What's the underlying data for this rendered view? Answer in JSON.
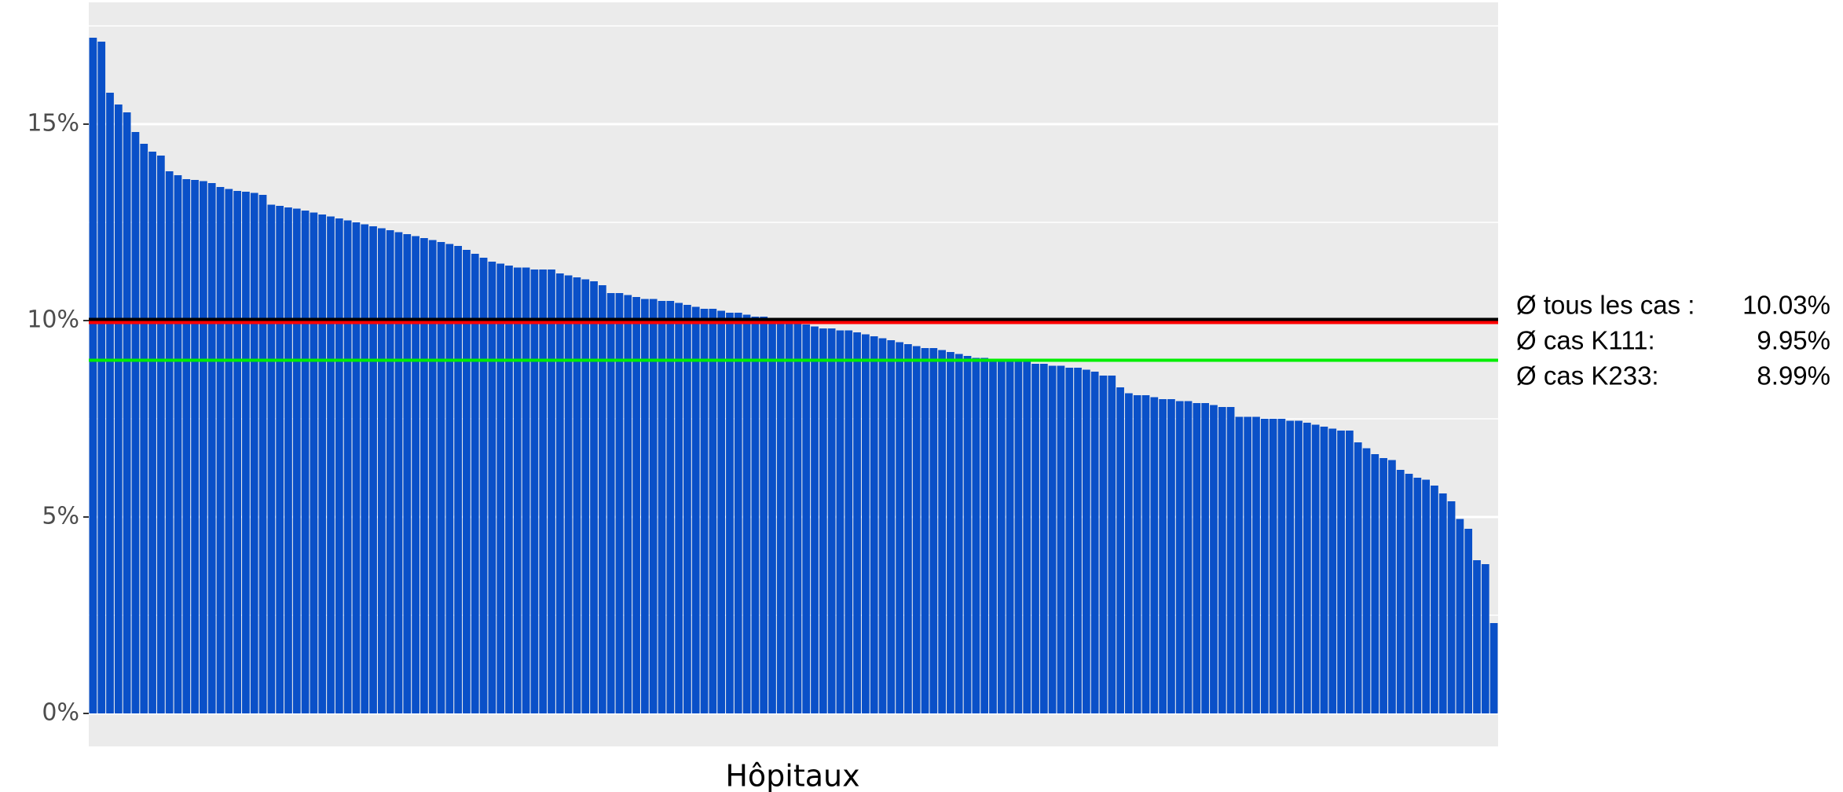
{
  "chart_data": {
    "type": "bar",
    "x_label": "Hôpitaux",
    "color": "#0a50c8",
    "values": [
      17.2,
      17.1,
      15.8,
      15.5,
      15.3,
      14.8,
      14.5,
      14.3,
      14.2,
      13.8,
      13.7,
      13.6,
      13.58,
      13.55,
      13.5,
      13.4,
      13.35,
      13.3,
      13.28,
      13.25,
      13.2,
      12.95,
      12.92,
      12.88,
      12.85,
      12.8,
      12.75,
      12.7,
      12.65,
      12.6,
      12.55,
      12.5,
      12.45,
      12.4,
      12.35,
      12.3,
      12.25,
      12.2,
      12.15,
      12.1,
      12.05,
      12.0,
      11.95,
      11.9,
      11.8,
      11.7,
      11.6,
      11.5,
      11.45,
      11.4,
      11.35,
      11.35,
      11.3,
      11.3,
      11.3,
      11.2,
      11.15,
      11.1,
      11.05,
      11.0,
      10.9,
      10.7,
      10.7,
      10.65,
      10.6,
      10.55,
      10.55,
      10.5,
      10.5,
      10.45,
      10.4,
      10.35,
      10.3,
      10.3,
      10.25,
      10.2,
      10.2,
      10.15,
      10.1,
      10.1,
      10.05,
      10.0,
      10.0,
      9.95,
      9.9,
      9.85,
      9.8,
      9.8,
      9.75,
      9.75,
      9.7,
      9.65,
      9.6,
      9.55,
      9.5,
      9.45,
      9.4,
      9.35,
      9.3,
      9.3,
      9.25,
      9.2,
      9.15,
      9.1,
      9.05,
      9.05,
      9.0,
      9.0,
      9.0,
      8.95,
      8.95,
      8.9,
      8.9,
      8.85,
      8.85,
      8.8,
      8.8,
      8.75,
      8.7,
      8.6,
      8.6,
      8.3,
      8.15,
      8.1,
      8.1,
      8.05,
      8.0,
      8.0,
      7.95,
      7.95,
      7.9,
      7.9,
      7.85,
      7.8,
      7.8,
      7.55,
      7.55,
      7.55,
      7.5,
      7.5,
      7.5,
      7.45,
      7.45,
      7.4,
      7.35,
      7.3,
      7.25,
      7.2,
      7.2,
      6.9,
      6.75,
      6.6,
      6.5,
      6.45,
      6.2,
      6.1,
      6.0,
      5.95,
      5.8,
      5.6,
      5.4,
      4.95,
      4.7,
      3.9,
      3.8,
      2.3
    ],
    "ylim": [
      -0.84,
      18.1
    ],
    "yticks": [
      {
        "value": 0,
        "label": "0%"
      },
      {
        "value": 5,
        "label": "5%"
      },
      {
        "value": 10,
        "label": "10%"
      },
      {
        "value": 15,
        "label": "15%"
      }
    ],
    "minor_grid": [
      2.5,
      7.5,
      12.5,
      17.5
    ],
    "grid": true,
    "reference_lines": [
      {
        "label": "Ø tous les cas :",
        "value": 10.03,
        "value_label": "10.03%",
        "color": "#000000"
      },
      {
        "label": "Ø cas K111:",
        "value": 9.95,
        "value_label": "9.95%",
        "color": "#ff0000"
      },
      {
        "label": "Ø cas K233:",
        "value": 8.99,
        "value_label": "8.99%",
        "color": "#00ee00"
      }
    ]
  }
}
